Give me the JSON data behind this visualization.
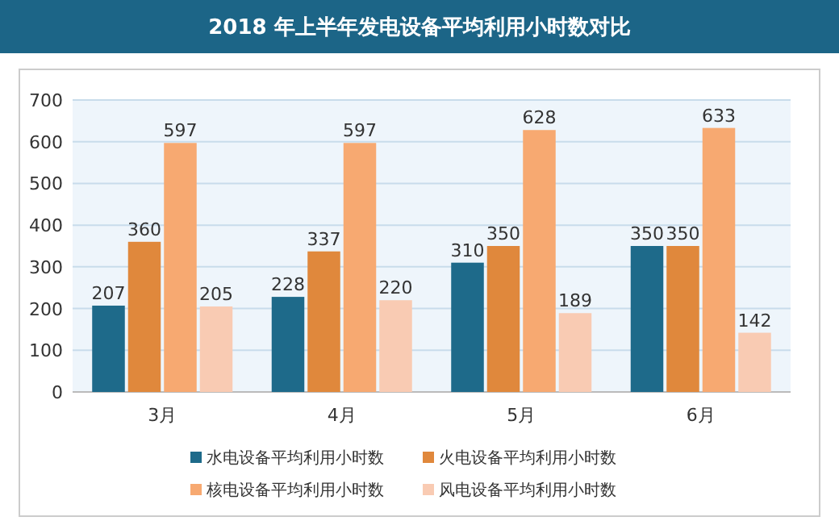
{
  "chart_data": {
    "type": "bar",
    "title": "2018 年上半年发电设备平均利用小时数对比",
    "categories": [
      "3月",
      "4月",
      "5月",
      "6月"
    ],
    "series": [
      {
        "name": "水电设备平均利用小时数",
        "color": "#1e6a8a",
        "values": [
          207,
          228,
          310,
          350
        ]
      },
      {
        "name": "火电设备平均利用小时数",
        "color": "#e0883c",
        "values": [
          360,
          337,
          350,
          350
        ]
      },
      {
        "name": "核电设备平均利用小时数",
        "color": "#f7a971",
        "values": [
          597,
          597,
          628,
          633
        ]
      },
      {
        "name": "风电设备平均利用小时数",
        "color": "#f9cbb3",
        "values": [
          205,
          220,
          189,
          142
        ]
      }
    ],
    "ylim": [
      0,
      700
    ],
    "yticks": [
      0,
      100,
      200,
      300,
      400,
      500,
      600,
      700
    ],
    "grid": "y",
    "legend": "bottom",
    "data_labels": true
  }
}
